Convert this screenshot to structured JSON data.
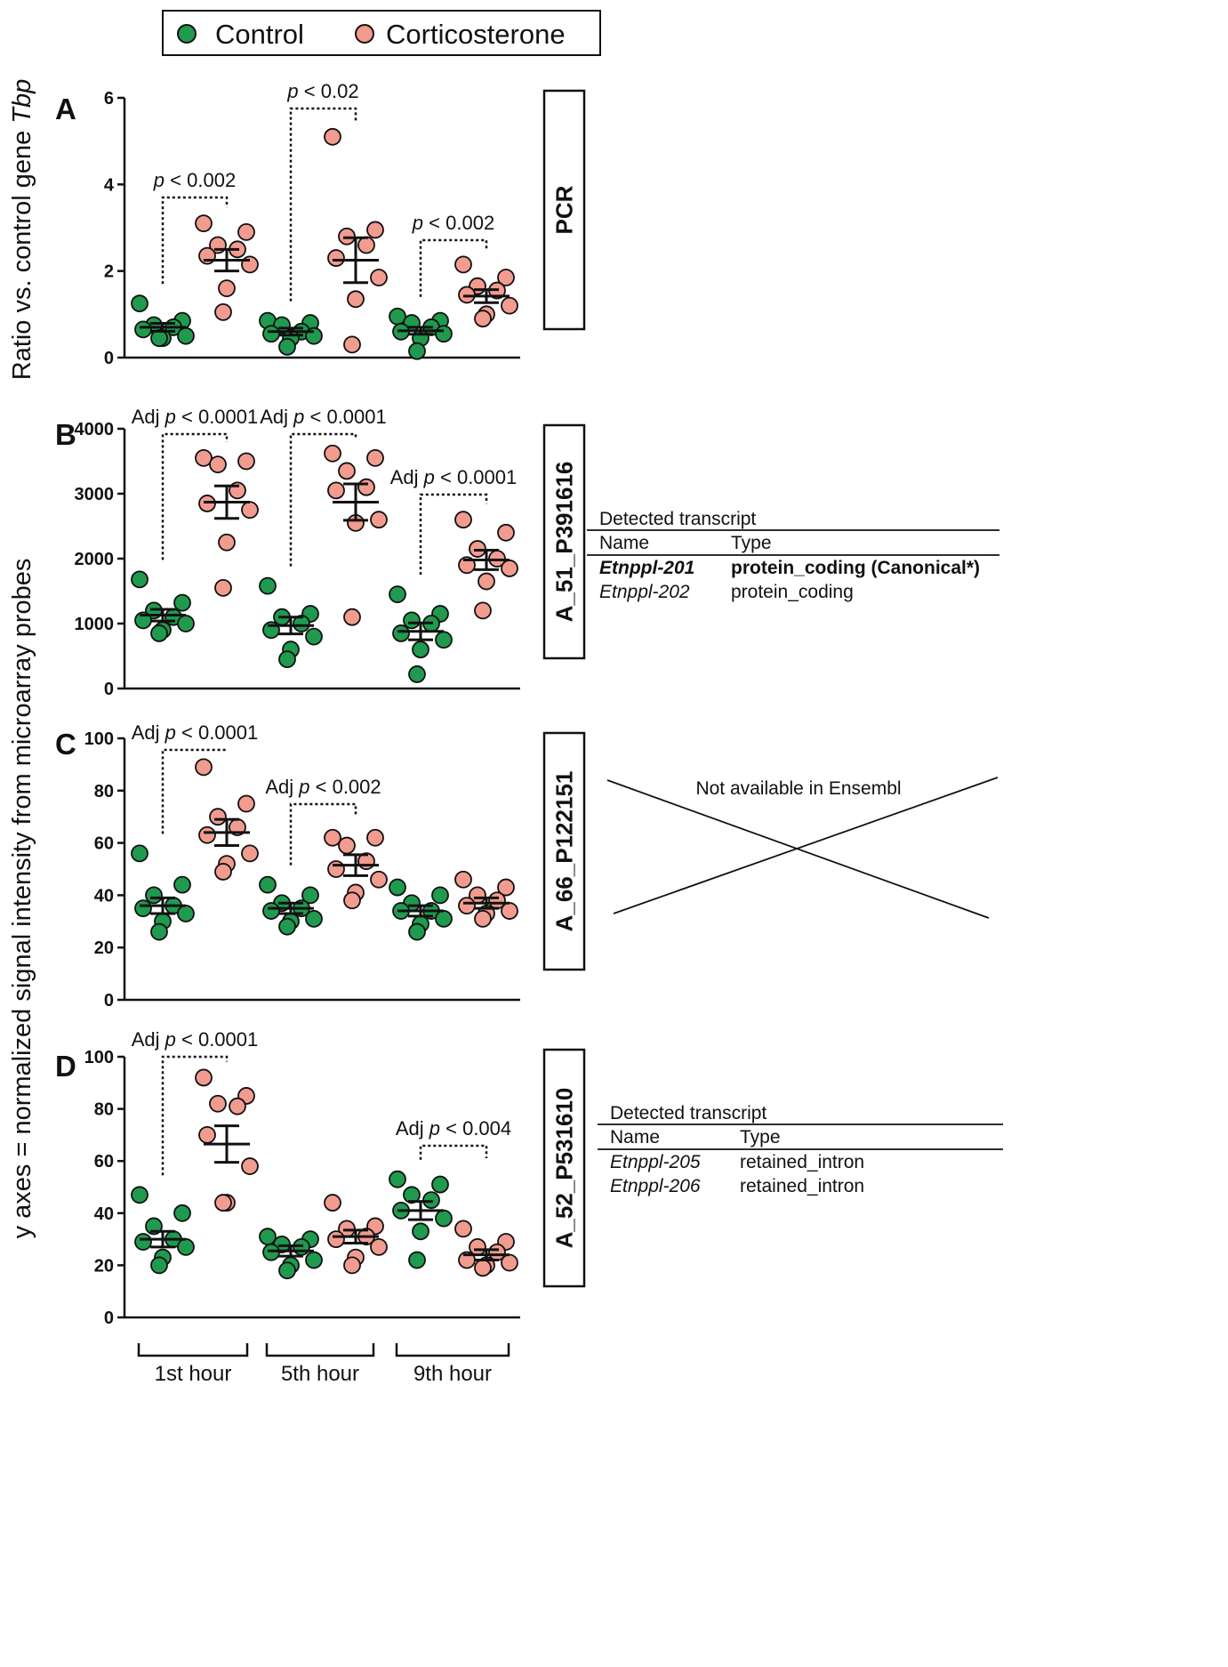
{
  "legend": {
    "items": [
      {
        "label": "Control",
        "color": "#1f9a4e"
      },
      {
        "label": "Corticosterone",
        "color": "#f29b8f"
      }
    ]
  },
  "ylabels": {
    "panel_a": "Ratio vs. control gene Tbp",
    "panels_bcd": "y axes = normalized signal intensity from microarray probes"
  },
  "x_groups": [
    "1st hour",
    "5th hour",
    "9th hour"
  ],
  "chart_data": [
    {
      "panel": "A",
      "type": "scatter",
      "probe": "PCR",
      "ylim": [
        0,
        6
      ],
      "yticks": [
        0,
        2,
        4,
        6
      ],
      "groups": [
        {
          "hour": "1st hour",
          "control": {
            "points": [
              1.25,
              0.85,
              0.75,
              0.7,
              0.65,
              0.5,
              0.45,
              0.45
            ],
            "mean": 0.7,
            "sem": 0.09
          },
          "cort": {
            "points": [
              3.1,
              2.9,
              2.6,
              2.5,
              2.35,
              2.15,
              1.6,
              1.05
            ],
            "mean": 2.25,
            "sem": 0.25
          },
          "annotation": {
            "prefix": "",
            "text": "< 0.002"
          }
        },
        {
          "hour": "5th hour",
          "control": {
            "points": [
              0.85,
              0.8,
              0.75,
              0.6,
              0.55,
              0.5,
              0.45,
              0.25
            ],
            "mean": 0.6,
            "sem": 0.08
          },
          "cort": {
            "points": [
              5.1,
              2.95,
              2.8,
              2.6,
              2.3,
              1.85,
              1.35,
              0.3
            ],
            "mean": 2.25,
            "sem": 0.52
          },
          "annotation": {
            "prefix": "",
            "text": "< 0.02"
          }
        },
        {
          "hour": "9th hour",
          "control": {
            "points": [
              0.95,
              0.85,
              0.8,
              0.7,
              0.6,
              0.55,
              0.45,
              0.15
            ],
            "mean": 0.62,
            "sem": 0.08
          },
          "cort": {
            "points": [
              2.15,
              1.85,
              1.65,
              1.55,
              1.45,
              1.2,
              1.0,
              0.9
            ],
            "mean": 1.42,
            "sem": 0.15
          },
          "annotation": {
            "prefix": "",
            "text": "< 0.002"
          }
        }
      ]
    },
    {
      "panel": "B",
      "type": "scatter",
      "probe": "A_51_P391616",
      "ylim": [
        0,
        4000
      ],
      "yticks": [
        0,
        1000,
        2000,
        3000,
        4000
      ],
      "groups": [
        {
          "hour": "1st hour",
          "control": {
            "points": [
              1680,
              1320,
              1200,
              1100,
              1050,
              1000,
              900,
              850
            ],
            "mean": 1130,
            "sem": 90
          },
          "cort": {
            "points": [
              3550,
              3500,
              3450,
              3050,
              2850,
              2750,
              2250,
              1550
            ],
            "mean": 2870,
            "sem": 250
          },
          "annotation": {
            "prefix": "Adj ",
            "text": "< 0.0001"
          }
        },
        {
          "hour": "5th hour",
          "control": {
            "points": [
              1580,
              1150,
              1100,
              1000,
              900,
              800,
              600,
              450
            ],
            "mean": 970,
            "sem": 130
          },
          "cort": {
            "points": [
              3620,
              3550,
              3350,
              3100,
              3050,
              2600,
              2550,
              1100
            ],
            "mean": 2870,
            "sem": 280
          },
          "annotation": {
            "prefix": "Adj ",
            "text": "< 0.0001"
          }
        },
        {
          "hour": "9th hour",
          "control": {
            "points": [
              1450,
              1150,
              1050,
              1000,
              850,
              750,
              600,
              220
            ],
            "mean": 880,
            "sem": 130
          },
          "cort": {
            "points": [
              2600,
              2400,
              2150,
              2000,
              1900,
              1850,
              1650,
              1200
            ],
            "mean": 1980,
            "sem": 150
          },
          "annotation": {
            "prefix": "Adj ",
            "text": "< 0.0001"
          }
        }
      ],
      "transcripts": {
        "heading": "Detected transcript",
        "columns": [
          "Name",
          "Type"
        ],
        "rows": [
          {
            "name": "Etnppl-201",
            "type": "protein_coding (Canonical*)",
            "bold": true
          },
          {
            "name": "Etnppl-202",
            "type": "protein_coding",
            "bold": false
          }
        ]
      }
    },
    {
      "panel": "C",
      "type": "scatter",
      "probe": "A_66_P122151",
      "ylim": [
        0,
        100
      ],
      "yticks": [
        0,
        20,
        40,
        60,
        80,
        100
      ],
      "groups": [
        {
          "hour": "1st hour",
          "control": {
            "points": [
              56,
              44,
              40,
              36,
              35,
              33,
              30,
              26
            ],
            "mean": 36,
            "sem": 3
          },
          "cort": {
            "points": [
              89,
              75,
              70,
              66,
              63,
              56,
              52,
              49
            ],
            "mean": 64,
            "sem": 5
          },
          "annotation": {
            "prefix": "Adj ",
            "text": "< 0.0001"
          }
        },
        {
          "hour": "5th hour",
          "control": {
            "points": [
              44,
              40,
              37,
              35,
              34,
              31,
              30,
              28
            ],
            "mean": 35,
            "sem": 2
          },
          "cort": {
            "points": [
              62,
              62,
              59,
              53,
              50,
              46,
              41,
              38
            ],
            "mean": 51.5,
            "sem": 4
          },
          "annotation": {
            "prefix": "Adj ",
            "text": "< 0.002"
          }
        },
        {
          "hour": "9th hour",
          "control": {
            "points": [
              43,
              40,
              37,
              34,
              34,
              31,
              29,
              26
            ],
            "mean": 34,
            "sem": 2
          },
          "cort": {
            "points": [
              46,
              43,
              40,
              38,
              36,
              34,
              33,
              31
            ],
            "mean": 37,
            "sem": 2
          },
          "annotation": null
        }
      ],
      "transcripts": {
        "note": "Not available in Ensembl"
      }
    },
    {
      "panel": "D",
      "type": "scatter",
      "probe": "A_52_P531610",
      "ylim": [
        0,
        100
      ],
      "yticks": [
        0,
        20,
        40,
        60,
        80,
        100
      ],
      "groups": [
        {
          "hour": "1st hour",
          "control": {
            "points": [
              47,
              40,
              35,
              30,
              29,
              27,
              23,
              20
            ],
            "mean": 30,
            "sem": 3
          },
          "cort": {
            "points": [
              92,
              85,
              82,
              81,
              70,
              58,
              44,
              44
            ],
            "mean": 66.5,
            "sem": 7
          },
          "annotation": {
            "prefix": "Adj ",
            "text": "< 0.0001"
          }
        },
        {
          "hour": "5th hour",
          "control": {
            "points": [
              31,
              30,
              28,
              27,
              25,
              22,
              20,
              18
            ],
            "mean": 25.5,
            "sem": 2
          },
          "cort": {
            "points": [
              44,
              35,
              34,
              31,
              30,
              27,
              23,
              20
            ],
            "mean": 31,
            "sem": 2.5
          },
          "annotation": null
        },
        {
          "hour": "9th hour",
          "control": {
            "points": [
              53,
              51,
              47,
              45,
              41,
              38,
              33,
              22
            ],
            "mean": 41,
            "sem": 3.5
          },
          "cort": {
            "points": [
              34,
              29,
              27,
              25,
              22,
              21,
              20,
              19
            ],
            "mean": 24,
            "sem": 2
          },
          "annotation": {
            "prefix": "Adj ",
            "text": "< 0.004"
          }
        }
      ],
      "transcripts": {
        "heading": "Detected transcript",
        "columns": [
          "Name",
          "Type"
        ],
        "rows": [
          {
            "name": "Etnppl-205",
            "type": "retained_intron",
            "bold": false
          },
          {
            "name": "Etnppl-206",
            "type": "retained_intron",
            "bold": false
          }
        ]
      }
    }
  ]
}
